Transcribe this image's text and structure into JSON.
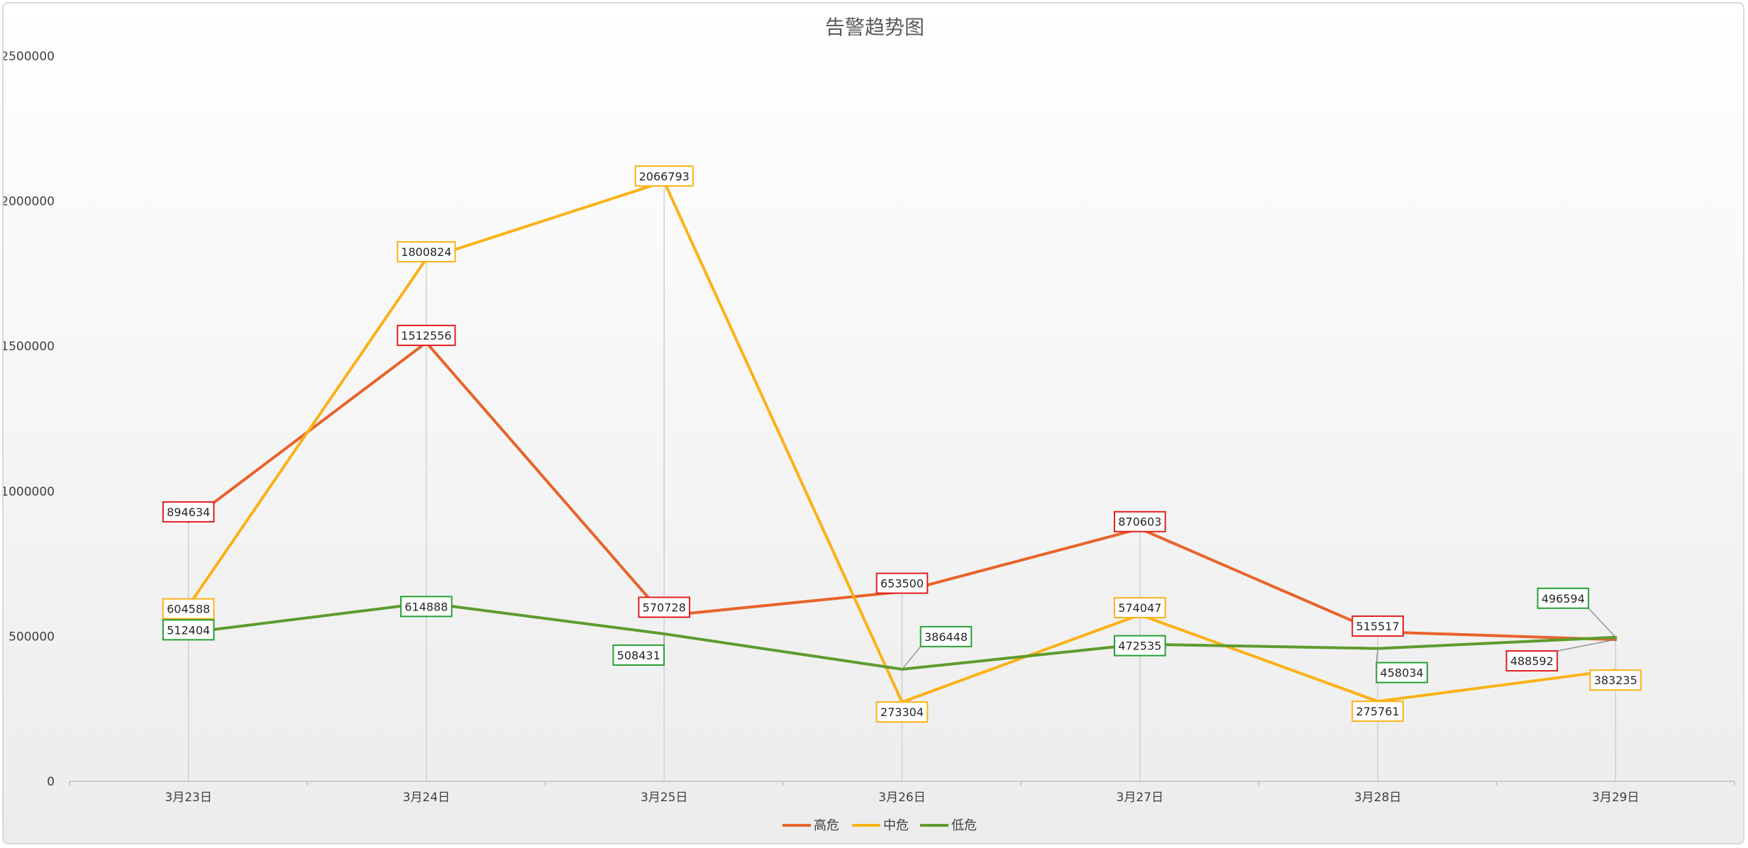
{
  "chart_data": {
    "type": "line",
    "title": "告警趋势图",
    "xlabel": "",
    "ylabel": "",
    "categories": [
      "3月23日",
      "3月24日",
      "3月25日",
      "3月26日",
      "3月27日",
      "3月28日",
      "3月29日"
    ],
    "ylim": [
      0,
      2500000
    ],
    "yticks": [
      0,
      500000,
      1000000,
      1500000,
      2000000,
      2500000
    ],
    "ytick_labels": [
      "0",
      "500000",
      "1000000",
      "1500000",
      "2000000",
      "2500000"
    ],
    "grid": false,
    "legend_position": "bottom",
    "series": [
      {
        "name": "高危",
        "color": "#e8632b",
        "label_border": "#e01f1f",
        "values": [
          894634,
          1512556,
          570728,
          653500,
          870603,
          515517,
          488592
        ]
      },
      {
        "name": "中危",
        "color": "#fbb216",
        "label_border": "#fbb216",
        "values": [
          604588,
          1800824,
          2066793,
          273304,
          574047,
          275761,
          383235
        ]
      },
      {
        "name": "低危",
        "color": "#5f9b2e",
        "label_border": "#27a035",
        "values": [
          512404,
          614888,
          508431,
          386448,
          472535,
          458034,
          496594
        ]
      }
    ]
  }
}
